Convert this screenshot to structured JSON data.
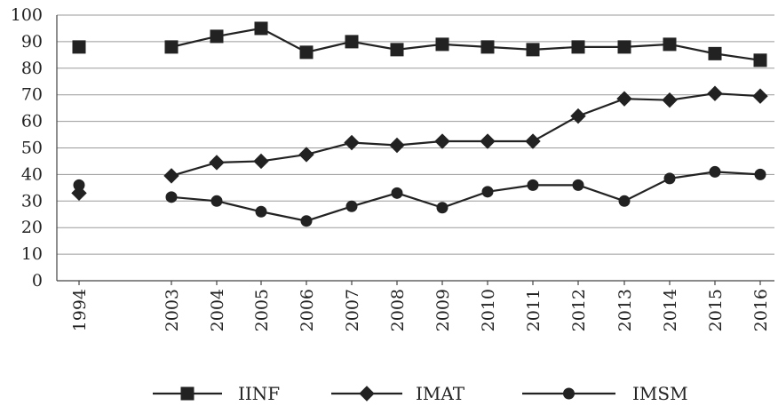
{
  "chart_data": {
    "type": "line",
    "categories": [
      "1994",
      "2003",
      "2004",
      "2005",
      "2006",
      "2007",
      "2008",
      "2009",
      "2010",
      "2011",
      "2012",
      "2013",
      "2014",
      "2015",
      "2016"
    ],
    "ylim": [
      0,
      100
    ],
    "yticks": [
      "0",
      "10",
      "20",
      "30",
      "40",
      "50",
      "60",
      "70",
      "80",
      "90",
      "100"
    ],
    "grid": true,
    "legend_position": "bottom",
    "series": [
      {
        "name": "IINF",
        "marker": "square",
        "values": [
          88,
          88,
          92,
          95,
          86,
          90,
          87,
          89,
          88,
          87,
          88,
          88,
          89,
          85.5,
          83
        ]
      },
      {
        "name": "IMAT",
        "marker": "diamond",
        "values": [
          33,
          39.5,
          44.5,
          45,
          47.5,
          52,
          51,
          52.5,
          52.5,
          52.5,
          62,
          68.5,
          68,
          70.5,
          69.5
        ]
      },
      {
        "name": "IMSM",
        "marker": "circle",
        "values": [
          36,
          31.5,
          30,
          26,
          22.5,
          28,
          33,
          27.5,
          33.5,
          36,
          36,
          30,
          38.5,
          41,
          40
        ]
      }
    ]
  }
}
